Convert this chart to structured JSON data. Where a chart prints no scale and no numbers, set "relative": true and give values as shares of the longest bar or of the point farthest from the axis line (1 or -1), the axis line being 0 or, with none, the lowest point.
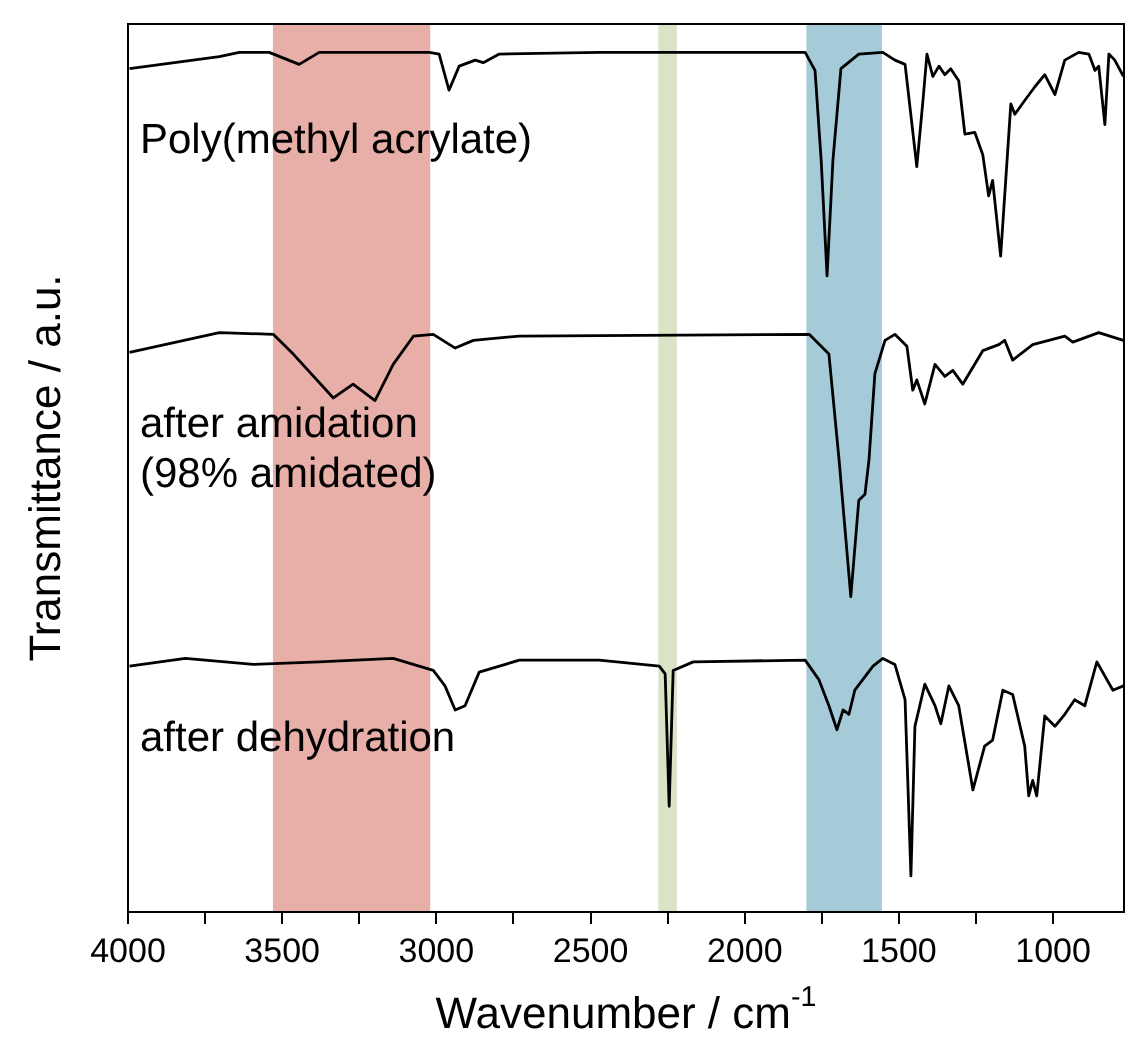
{
  "chart_data": {
    "type": "line",
    "relative": true,
    "xlabel": "Wavenumber / cm$^{-1}$",
    "ylabel": "Transmittance / a.u.",
    "xlim": [
      4000,
      770
    ],
    "xticks": [
      4000,
      {
        "value": 3750,
        "label": null
      },
      3500,
      {
        "value": 3250,
        "label": null
      },
      3000,
      {
        "value": 2750,
        "label": null
      },
      2500,
      {
        "value": 2250,
        "label": null
      },
      2000,
      {
        "value": 1750,
        "label": null
      },
      1500,
      {
        "value": 1250,
        "label": null
      },
      1000
    ],
    "legend": false,
    "grid": false,
    "marker": "none",
    "line_style": "solid",
    "bands": [
      {
        "axis": "x",
        "from": 3530,
        "to": 3020,
        "color": "#e8aea8"
      },
      {
        "axis": "x",
        "from": 2280,
        "to": 2220,
        "color": "#d9e3c6"
      },
      {
        "axis": "x",
        "from": 1800,
        "to": 1555,
        "color": "#a6cbd8"
      }
    ],
    "series": [
      {
        "name": "Poly(methyl acrylate)",
        "color": "#000000",
        "x": [
          3995,
          3704,
          3639,
          3542,
          3445,
          3380,
          3023,
          2991,
          2959,
          2926,
          2874,
          2848,
          2796,
          2472,
          1804,
          1772,
          1752,
          1733,
          1714,
          1688,
          1630,
          1552,
          1513,
          1480,
          1442,
          1422,
          1409,
          1390,
          1370,
          1351,
          1332,
          1306,
          1286,
          1254,
          1228,
          1209,
          1196,
          1170,
          1137,
          1124,
          1092,
          1059,
          1027,
          994,
          962,
          917,
          884,
          864,
          852,
          832,
          819,
          800,
          772
        ],
        "values": [
          0.981,
          0.995,
          1.0,
          1.0,
          0.986,
          1.0,
          1.0,
          0.998,
          0.956,
          0.984,
          0.991,
          0.988,
          0.998,
          1.0,
          1.0,
          0.979,
          0.874,
          0.74,
          0.874,
          0.981,
          0.998,
          1.0,
          0.991,
          0.986,
          0.867,
          0.944,
          0.998,
          0.972,
          0.984,
          0.974,
          0.981,
          0.967,
          0.905,
          0.907,
          0.881,
          0.833,
          0.851,
          0.763,
          0.94,
          0.928,
          0.944,
          0.96,
          0.974,
          0.951,
          0.991,
          1.0,
          0.998,
          0.979,
          0.984,
          0.916,
          0.998,
          0.991,
          0.972
        ]
      },
      {
        "name": "after amidation\n(98% amidated)",
        "color": "#000000",
        "x": [
          3995,
          3704,
          3529,
          3464,
          3334,
          3270,
          3199,
          3140,
          3074,
          3010,
          2939,
          2880,
          2731,
          1791,
          1727,
          1694,
          1656,
          1630,
          1610,
          1597,
          1578,
          1545,
          1513,
          1474,
          1455,
          1442,
          1416,
          1383,
          1351,
          1325,
          1293,
          1228,
          1176,
          1157,
          1131,
          1066,
          962,
          936,
          852,
          772
        ],
        "values": [
          0.651,
          0.674,
          0.672,
          0.649,
          0.598,
          0.614,
          0.595,
          0.637,
          0.67,
          0.672,
          0.656,
          0.665,
          0.67,
          0.672,
          0.649,
          0.526,
          0.367,
          0.479,
          0.486,
          0.526,
          0.626,
          0.665,
          0.672,
          0.658,
          0.607,
          0.619,
          0.591,
          0.637,
          0.623,
          0.63,
          0.614,
          0.653,
          0.66,
          0.665,
          0.642,
          0.66,
          0.67,
          0.663,
          0.674,
          0.665
        ]
      },
      {
        "name": "after dehydration",
        "color": "#000000",
        "x": [
          3995,
          3814,
          3594,
          3380,
          3140,
          3010,
          2972,
          2939,
          2907,
          2861,
          2731,
          2472,
          2277,
          2258,
          2245,
          2232,
          2167,
          1804,
          1759,
          1727,
          1701,
          1681,
          1662,
          1643,
          1584,
          1552,
          1513,
          1480,
          1461,
          1448,
          1416,
          1383,
          1364,
          1338,
          1306,
          1260,
          1222,
          1196,
          1163,
          1131,
          1092,
          1079,
          1066,
          1053,
          1027,
          994,
          962,
          930,
          897,
          858,
          806,
          772
        ],
        "values": [
          0.286,
          0.295,
          0.288,
          0.291,
          0.295,
          0.281,
          0.263,
          0.235,
          0.24,
          0.279,
          0.293,
          0.293,
          0.286,
          0.277,
          0.123,
          0.281,
          0.291,
          0.293,
          0.27,
          0.24,
          0.212,
          0.235,
          0.23,
          0.258,
          0.286,
          0.295,
          0.288,
          0.247,
          0.042,
          0.216,
          0.265,
          0.24,
          0.219,
          0.263,
          0.24,
          0.142,
          0.193,
          0.2,
          0.258,
          0.253,
          0.193,
          0.135,
          0.153,
          0.135,
          0.228,
          0.216,
          0.23,
          0.247,
          0.24,
          0.291,
          0.258,
          0.263
        ]
      }
    ]
  }
}
